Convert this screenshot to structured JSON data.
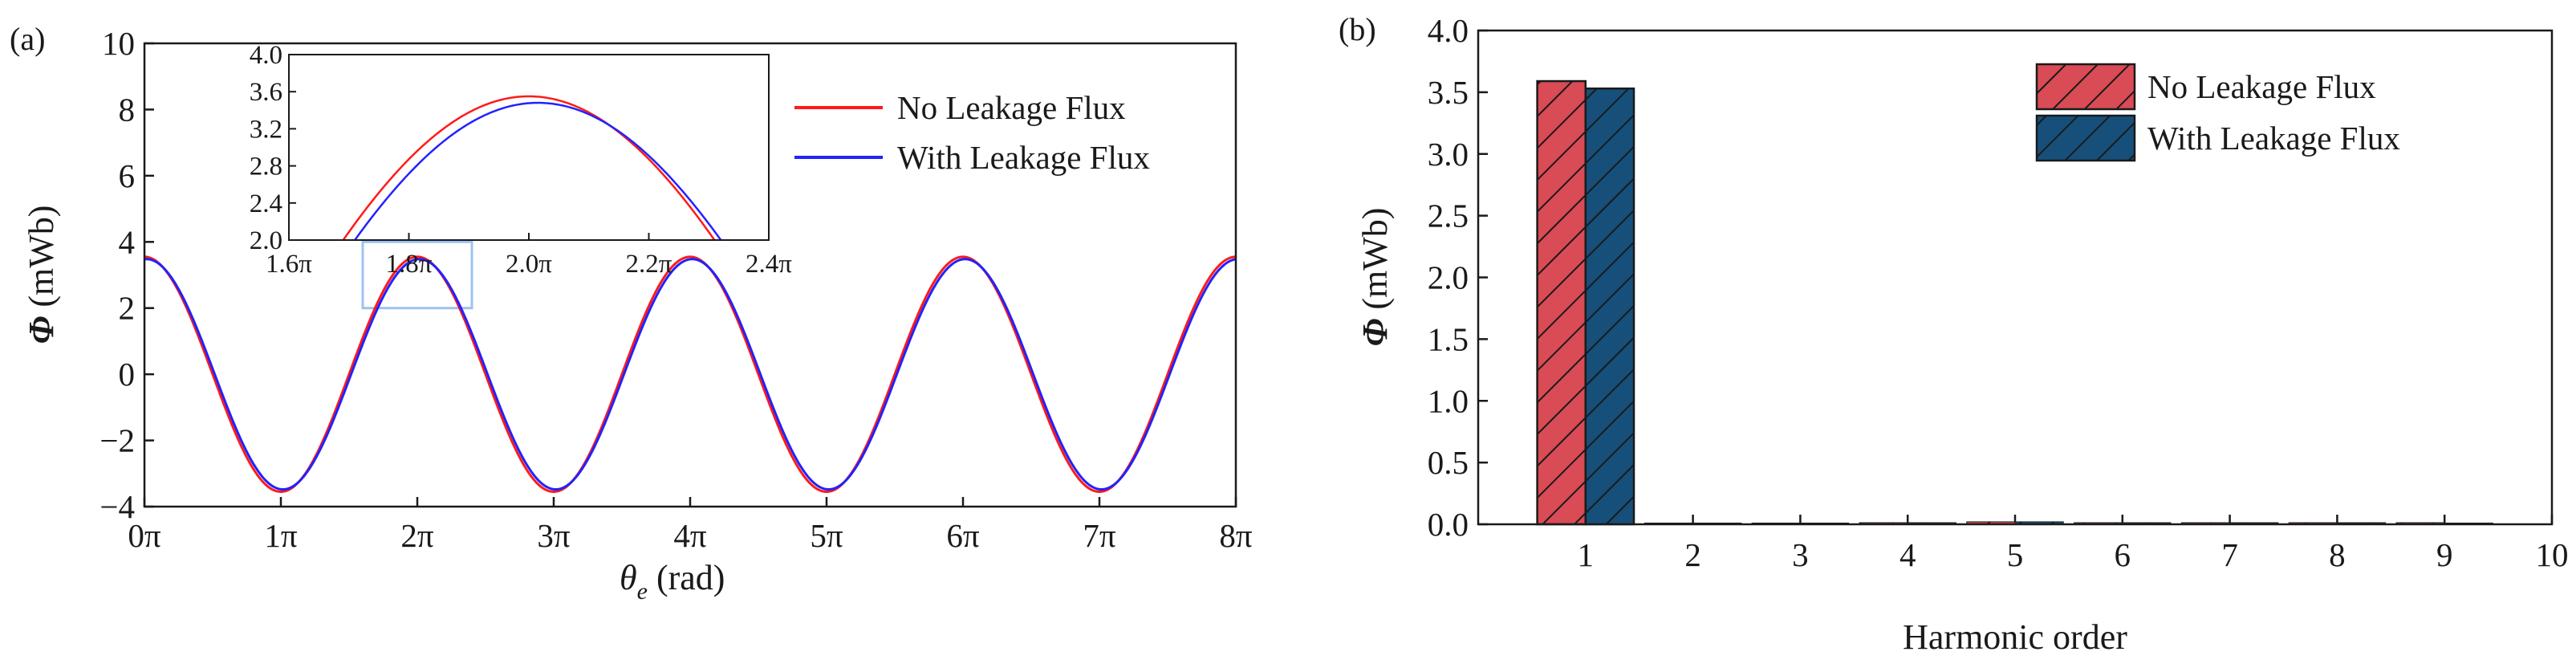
{
  "panel_labels": {
    "a": "(a)",
    "b": "(b)"
  },
  "colors": {
    "no_leakage_line": "#ff1a1a",
    "with_leakage_line": "#2222ff",
    "no_leakage_bar": "#d94b55",
    "with_leakage_bar": "#16507a",
    "zoom_box": "#9cc3ee"
  },
  "chart_data": [
    {
      "id": "a",
      "type": "line",
      "xlabel_symbol": "θ",
      "xlabel_subscript": "e",
      "xlabel_unit": " (rad)",
      "ylabel_symbol": "Φ",
      "ylabel_unit": " (mWb)",
      "xlim": [
        0,
        8
      ],
      "ylim": [
        -4,
        10
      ],
      "x_ticks": [
        0,
        1,
        2,
        3,
        4,
        5,
        6,
        7,
        8
      ],
      "x_tick_labels": [
        "0π",
        "1π",
        "2π",
        "3π",
        "4π",
        "5π",
        "6π",
        "7π",
        "8π"
      ],
      "y_ticks": [
        -4,
        -2,
        0,
        2,
        4,
        6,
        8,
        10
      ],
      "y_tick_labels": [
        "−4",
        "−2",
        "0",
        "2",
        "4",
        "6",
        "8",
        "10"
      ],
      "x_unit": "π rad",
      "series": [
        {
          "name": "No Leakage Flux",
          "color_key": "no_leakage_line",
          "amplitude": 3.55,
          "phase_offset": 0.0
        },
        {
          "name": "With Leakage Flux",
          "color_key": "with_leakage_line",
          "amplitude": 3.48,
          "phase_offset": 0.015
        }
      ],
      "legend": {
        "position": "top-right",
        "entries": [
          "No Leakage Flux",
          "With Leakage Flux"
        ]
      },
      "zoom_region": {
        "x": [
          1.6,
          2.4
        ],
        "y": [
          2.0,
          4.0
        ]
      },
      "inset": {
        "xlim": [
          1.6,
          2.4
        ],
        "ylim": [
          2.0,
          4.0
        ],
        "x_ticks": [
          1.6,
          1.8,
          2.0,
          2.2,
          2.4
        ],
        "x_tick_labels": [
          "1.6π",
          "1.8π",
          "2.0π",
          "2.2π",
          "2.4π"
        ],
        "y_ticks": [
          2.0,
          2.4,
          2.8,
          3.2,
          3.6,
          4.0
        ],
        "y_tick_labels": [
          "2.0",
          "2.4",
          "2.8",
          "3.2",
          "3.6",
          "4.0"
        ]
      }
    },
    {
      "id": "b",
      "type": "bar",
      "xlabel": "Harmonic order",
      "ylabel_symbol": "Φ",
      "ylabel_unit": " (mWb)",
      "xlim": [
        0,
        10
      ],
      "ylim": [
        0,
        4
      ],
      "categories": [
        1,
        2,
        3,
        4,
        5,
        6,
        7,
        8,
        9
      ],
      "x_ticks": [
        1,
        2,
        3,
        4,
        5,
        6,
        7,
        8,
        9,
        10
      ],
      "x_tick_labels": [
        "1",
        "2",
        "3",
        "4",
        "5",
        "6",
        "7",
        "8",
        "9",
        "10"
      ],
      "y_ticks": [
        0,
        0.5,
        1.0,
        1.5,
        2.0,
        2.5,
        3.0,
        3.5,
        4.0
      ],
      "y_tick_labels": [
        "0.0",
        "0.5",
        "1.0",
        "1.5",
        "2.0",
        "2.5",
        "3.0",
        "3.5",
        "4.0"
      ],
      "series": [
        {
          "name": "No Leakage Flux",
          "color_key": "no_leakage_bar",
          "values": [
            3.59,
            0.01,
            0.01,
            0.0,
            0.02,
            0.0,
            0.0,
            0.0,
            0.0
          ]
        },
        {
          "name": "With Leakage Flux",
          "color_key": "with_leakage_bar",
          "values": [
            3.53,
            0.01,
            0.01,
            0.0,
            0.02,
            0.0,
            0.0,
            0.0,
            0.01
          ]
        }
      ],
      "legend": {
        "position": "top-right",
        "entries": [
          "No Leakage Flux",
          "With Leakage Flux"
        ]
      }
    }
  ]
}
